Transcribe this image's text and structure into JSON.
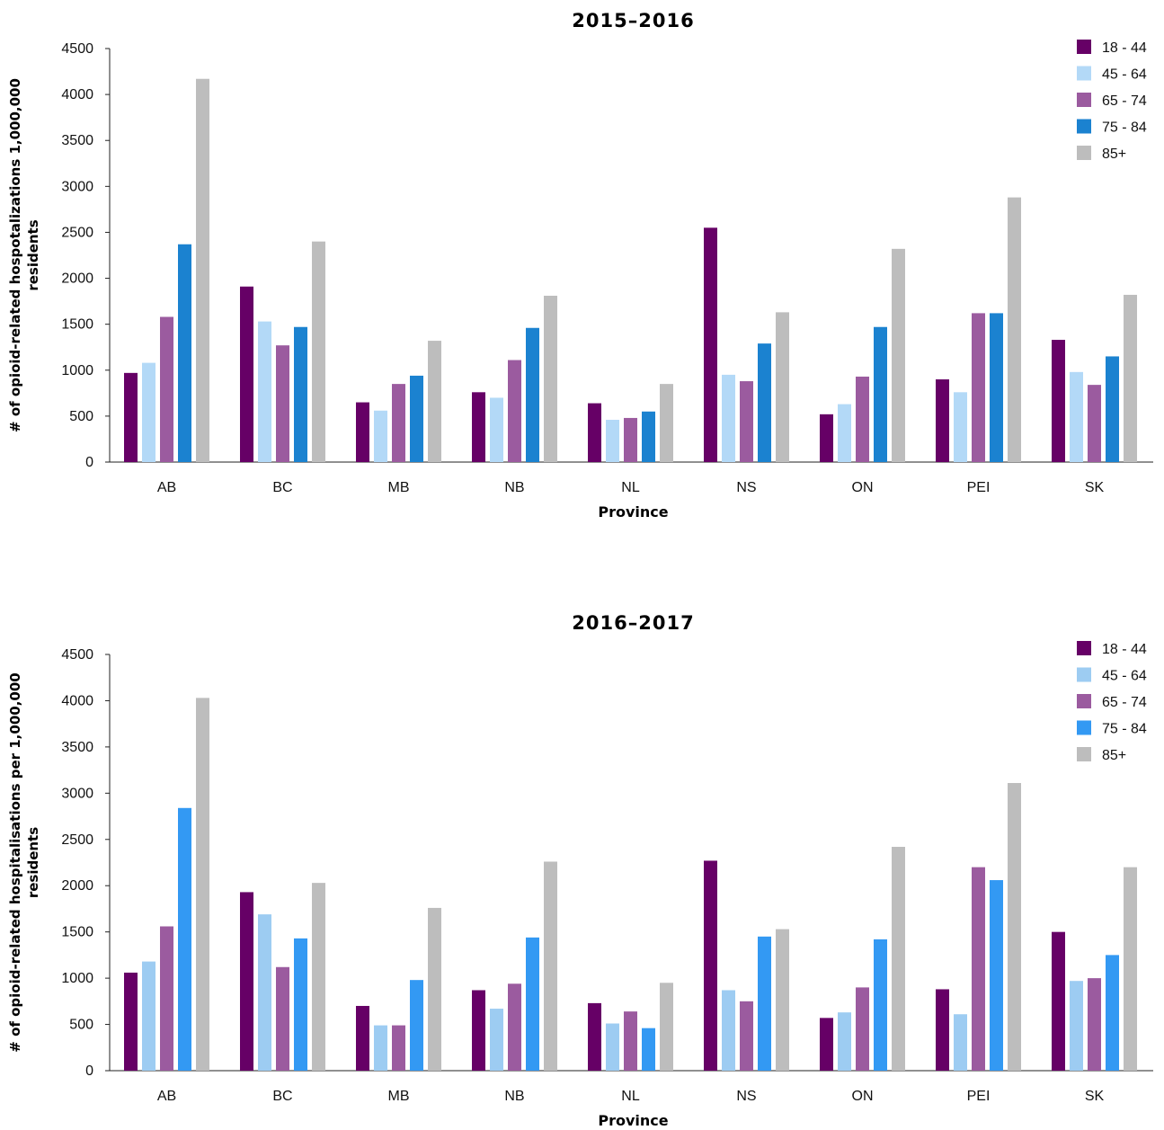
{
  "chart_data": [
    {
      "type": "bar",
      "title": "2015–2016",
      "xlabel": "Province",
      "ylabel": "# of opioid-related hospotalizations 1,000,000",
      "ylabel2": "residents",
      "categories": [
        "AB",
        "BC",
        "MB",
        "NB",
        "NL",
        "NS",
        "ON",
        "PEI",
        "SK"
      ],
      "ylim": [
        0,
        4500
      ],
      "yticks": [
        0,
        500,
        1000,
        1500,
        2000,
        2500,
        3000,
        3500,
        4000,
        4500
      ],
      "grid": false,
      "legend_position": "top-right",
      "series": [
        {
          "name": "18 - 44",
          "color": "#660066",
          "values": [
            970,
            1910,
            650,
            760,
            640,
            2550,
            520,
            900,
            1330
          ]
        },
        {
          "name": "45 - 64",
          "color": "#b3d9f7",
          "values": [
            1080,
            1530,
            560,
            700,
            460,
            950,
            630,
            760,
            980
          ]
        },
        {
          "name": "65 - 74",
          "color": "#9b5b9f",
          "values": [
            1580,
            1270,
            850,
            1110,
            480,
            880,
            930,
            1620,
            840
          ]
        },
        {
          "name": "75 - 84",
          "color": "#1b82d0",
          "values": [
            2370,
            1470,
            940,
            1460,
            550,
            1290,
            1470,
            1620,
            1150
          ]
        },
        {
          "name": "85+",
          "color": "#bdbdbd",
          "values": [
            4170,
            2400,
            1320,
            1810,
            850,
            1630,
            2320,
            2880,
            1820
          ]
        }
      ]
    },
    {
      "type": "bar",
      "title": "2016–2017",
      "xlabel": "Province",
      "ylabel": "# of opioid-related hospitalisations per 1,000,000",
      "ylabel2": "residents",
      "categories": [
        "AB",
        "BC",
        "MB",
        "NB",
        "NL",
        "NS",
        "ON",
        "PEI",
        "SK"
      ],
      "ylim": [
        0,
        4500
      ],
      "yticks": [
        0,
        500,
        1000,
        1500,
        2000,
        2500,
        3000,
        3500,
        4000,
        4500
      ],
      "grid": false,
      "legend_position": "top-right",
      "series": [
        {
          "name": "18 - 44",
          "color": "#660066",
          "values": [
            1060,
            1930,
            700,
            870,
            730,
            2270,
            570,
            880,
            1500
          ]
        },
        {
          "name": "45 - 64",
          "color": "#9dccf2",
          "values": [
            1180,
            1690,
            490,
            670,
            510,
            870,
            630,
            610,
            970
          ]
        },
        {
          "name": "65 - 74",
          "color": "#9b5b9f",
          "values": [
            1560,
            1120,
            490,
            940,
            640,
            750,
            900,
            2200,
            1000
          ]
        },
        {
          "name": "75 - 84",
          "color": "#3399f3",
          "values": [
            2840,
            1430,
            980,
            1440,
            460,
            1450,
            1420,
            2060,
            1250
          ]
        },
        {
          "name": "85+",
          "color": "#bdbdbd",
          "values": [
            4030,
            2030,
            1760,
            2260,
            950,
            1530,
            2420,
            3110,
            2200
          ]
        }
      ]
    }
  ]
}
